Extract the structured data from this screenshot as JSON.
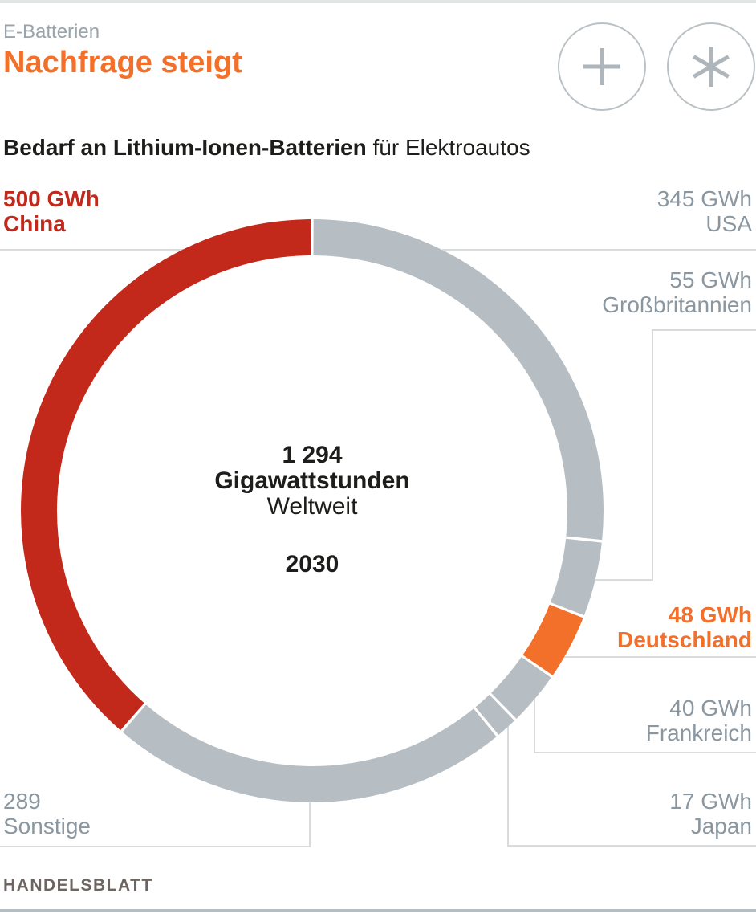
{
  "header": {
    "kicker": "E-Batterien",
    "title": "Nachfrage steigt",
    "actions": [
      {
        "label": "plus",
        "icon": "plus-icon"
      },
      {
        "label": "asterisk",
        "icon": "asterisk-icon"
      }
    ]
  },
  "subtitle": {
    "bold": "Bedarf an Lithium-Ionen-Batterien",
    "regular": " für Elektroautos"
  },
  "chart_data": {
    "type": "pie",
    "subtype": "donut",
    "title": "Bedarf an Lithium-Ionen-Batterien für Elektroautos",
    "unit": "GWh",
    "total": 1294,
    "start": "top",
    "direction": "clockwise",
    "center_label": {
      "value": "1 294",
      "unit": "Gigawattstunden",
      "scope": "Weltweit",
      "year": "2030"
    },
    "segments": [
      {
        "label": "USA",
        "value": 345,
        "value_label": "345 GWh",
        "color": "#b7bec3",
        "label_color": "#8a97a0",
        "emphasis": false
      },
      {
        "label": "Großbritannien",
        "value": 55,
        "value_label": "55 GWh",
        "color": "#b7bec3",
        "label_color": "#8a97a0",
        "emphasis": false
      },
      {
        "label": "Deutschland",
        "value": 48,
        "value_label": "48 GWh",
        "color": "#f3702a",
        "label_color": "#f3702a",
        "emphasis": true
      },
      {
        "label": "Frankreich",
        "value": 40,
        "value_label": "40 GWh",
        "color": "#b7bec3",
        "label_color": "#8a97a0",
        "emphasis": false
      },
      {
        "label": "Japan",
        "value": 17,
        "value_label": "17 GWh",
        "color": "#b7bec3",
        "label_color": "#8a97a0",
        "emphasis": false
      },
      {
        "label": "Sonstige",
        "value": 289,
        "value_label": "289",
        "color": "#b7bec3",
        "label_color": "#8a97a0",
        "emphasis": false
      },
      {
        "label": "China",
        "value": 500,
        "value_label": "500 GWh",
        "color": "#c2291a",
        "label_color": "#c2291a",
        "emphasis": true
      }
    ]
  },
  "footer": {
    "brand": "HANDELSBLATT"
  }
}
